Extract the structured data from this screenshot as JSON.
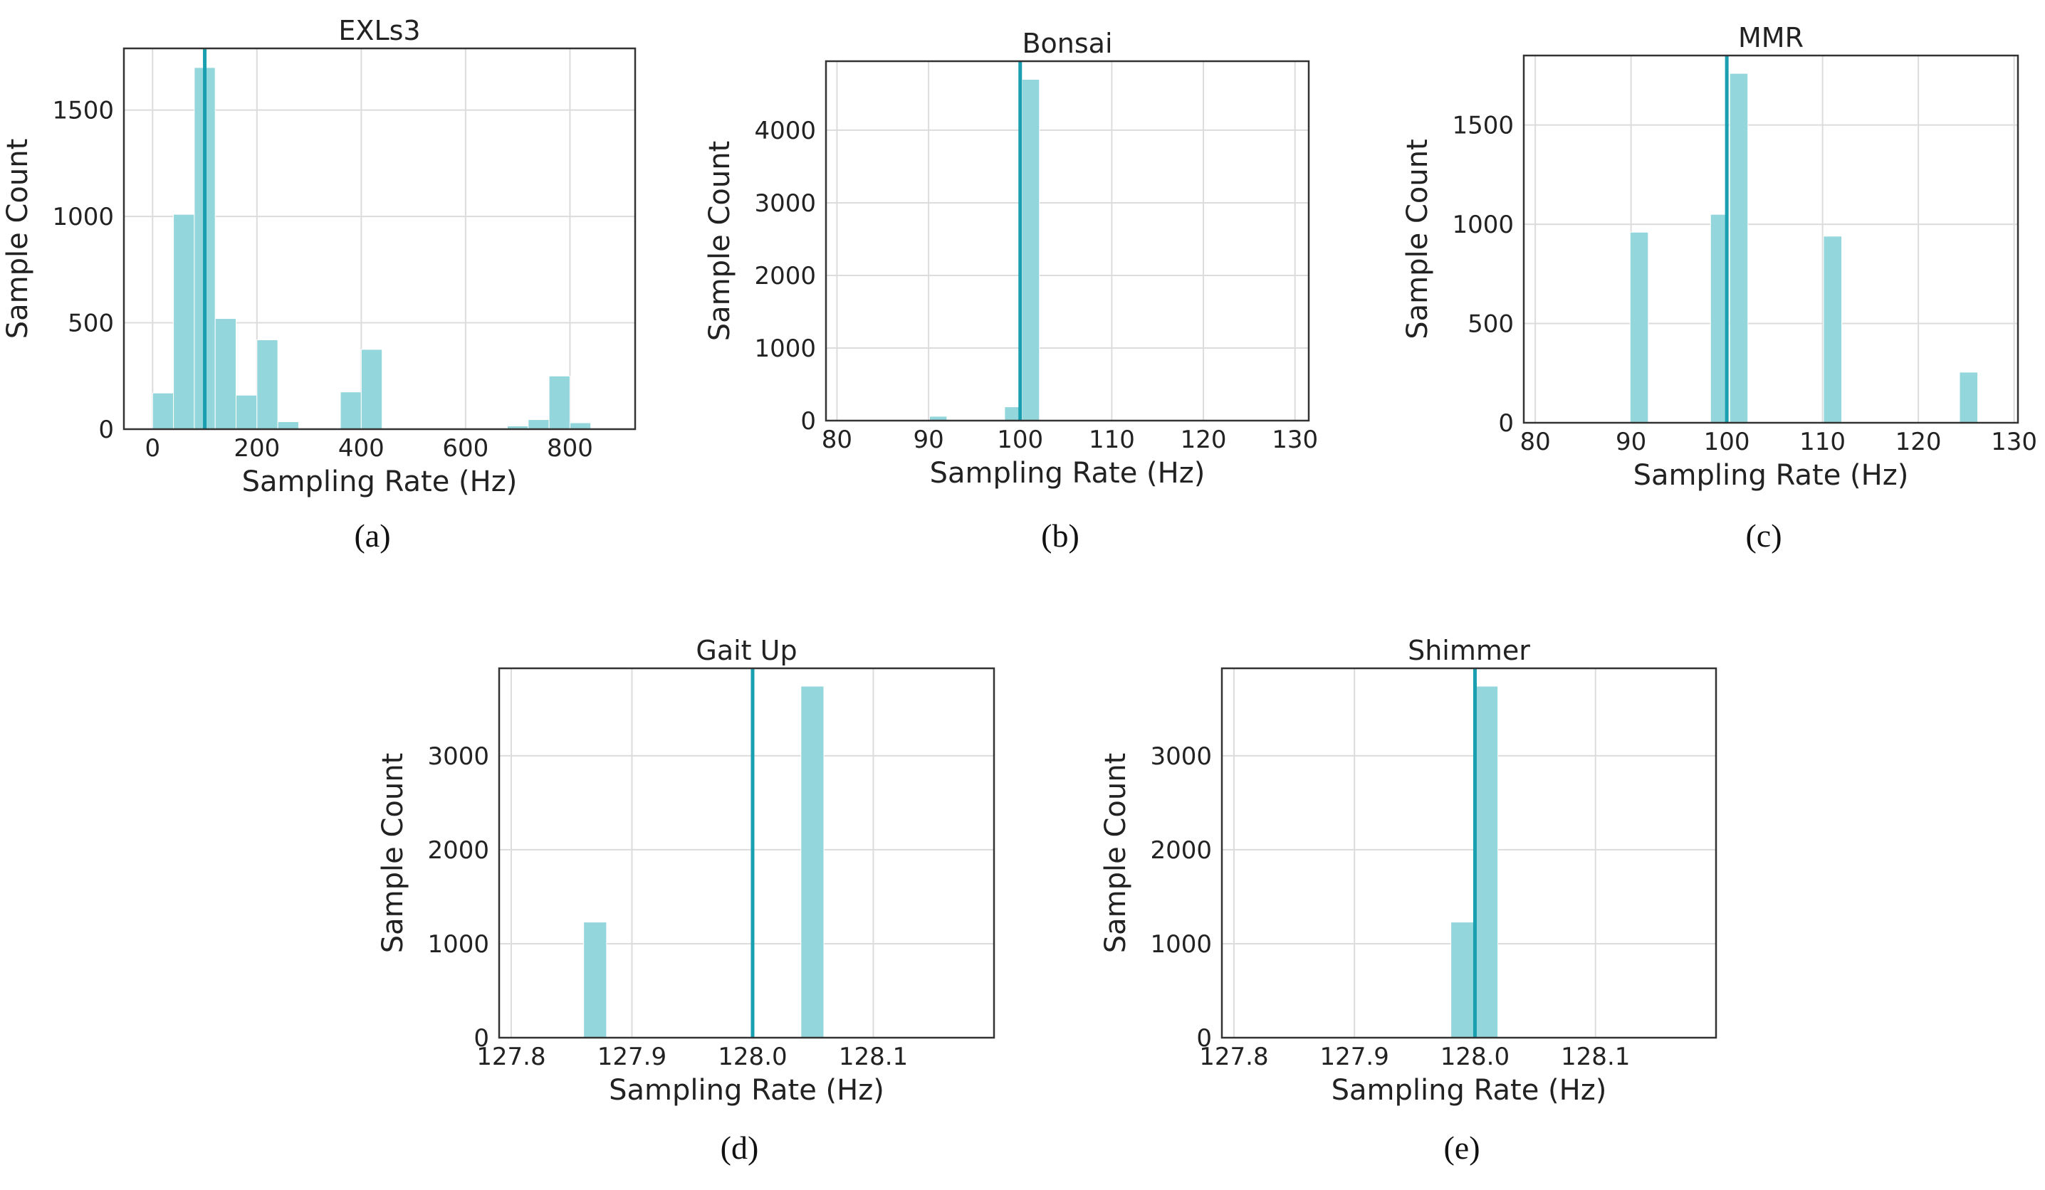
{
  "colors": {
    "bar": "#93d6db",
    "ref_line": "#1a9fb0"
  },
  "chart_data": [
    {
      "id": "a",
      "type": "bar",
      "title": "EXLs3",
      "xlabel": "Sampling Rate (Hz)",
      "ylabel": "Sample Count",
      "caption": "(a)",
      "xlim": [
        -55,
        925
      ],
      "ylim": [
        0,
        1790
      ],
      "xticks": [
        0,
        200,
        400,
        600,
        800
      ],
      "xtick_labels": [
        "0",
        "200",
        "400",
        "600",
        "800"
      ],
      "yticks": [
        0,
        500,
        1000,
        1500
      ],
      "ytick_labels": [
        "0",
        "500",
        "1000",
        "1500"
      ],
      "bin_width": 40,
      "bars": [
        {
          "x": 0,
          "value": 170
        },
        {
          "x": 40,
          "value": 1010
        },
        {
          "x": 80,
          "value": 1700
        },
        {
          "x": 120,
          "value": 520
        },
        {
          "x": 160,
          "value": 160
        },
        {
          "x": 200,
          "value": 420
        },
        {
          "x": 240,
          "value": 35
        },
        {
          "x": 360,
          "value": 175
        },
        {
          "x": 400,
          "value": 375
        },
        {
          "x": 640,
          "value": 5
        },
        {
          "x": 680,
          "value": 15
        },
        {
          "x": 720,
          "value": 45
        },
        {
          "x": 760,
          "value": 250
        },
        {
          "x": 800,
          "value": 30
        }
      ],
      "ref_line": 100
    },
    {
      "id": "b",
      "type": "bar",
      "title": "Bonsai",
      "xlabel": "Sampling Rate (Hz)",
      "ylabel": "Sample Count",
      "caption": "(b)",
      "xlim": [
        78.8,
        131.5
      ],
      "ylim": [
        0,
        4950
      ],
      "xticks": [
        80,
        90,
        100,
        110,
        120,
        130
      ],
      "xtick_labels": [
        "80",
        "90",
        "100",
        "110",
        "120",
        "130"
      ],
      "yticks": [
        0,
        1000,
        2000,
        3000,
        4000
      ],
      "ytick_labels": [
        "0",
        "1000",
        "2000",
        "3000",
        "4000"
      ],
      "bin_width": 1.9,
      "bars": [
        {
          "x": 90.1,
          "value": 60
        },
        {
          "x": 98.3,
          "value": 190
        },
        {
          "x": 100.2,
          "value": 4700
        }
      ],
      "ref_line": 100
    },
    {
      "id": "c",
      "type": "bar",
      "title": "MMR",
      "xlabel": "Sampling Rate (Hz)",
      "ylabel": "Sample Count",
      "caption": "(c)",
      "xlim": [
        78.8,
        130.4
      ],
      "ylim": [
        0,
        1850
      ],
      "xticks": [
        80,
        90,
        100,
        110,
        120,
        130
      ],
      "xtick_labels": [
        "80",
        "90",
        "100",
        "110",
        "120",
        "130"
      ],
      "yticks": [
        0,
        500,
        1000,
        1500
      ],
      "ytick_labels": [
        "0",
        "500",
        "1000",
        "1500"
      ],
      "bin_width": 1.9,
      "bars": [
        {
          "x": 89.9,
          "value": 960
        },
        {
          "x": 98.3,
          "value": 1050
        },
        {
          "x": 100.3,
          "value": 1760
        },
        {
          "x": 110.1,
          "value": 940
        },
        {
          "x": 124.3,
          "value": 255
        }
      ],
      "ref_line": 100
    },
    {
      "id": "d",
      "type": "bar",
      "title": "Gait Up",
      "xlabel": "Sampling Rate (Hz)",
      "ylabel": "Sample Count",
      "caption": "(d)",
      "xlim": [
        127.79,
        128.2
      ],
      "ylim": [
        0,
        3930
      ],
      "xticks": [
        127.8,
        127.9,
        128.0,
        128.1
      ],
      "xtick_labels": [
        "127.8",
        "127.9",
        "128.0",
        "128.1"
      ],
      "yticks": [
        0,
        1000,
        2000,
        3000
      ],
      "ytick_labels": [
        "0",
        "1000",
        "2000",
        "3000"
      ],
      "bin_width": 0.019,
      "bars": [
        {
          "x": 127.86,
          "value": 1230
        },
        {
          "x": 128.04,
          "value": 3740
        }
      ],
      "ref_line": 128.0
    },
    {
      "id": "e",
      "type": "bar",
      "title": "Shimmer",
      "xlabel": "Sampling Rate (Hz)",
      "ylabel": "Sample Count",
      "caption": "(e)",
      "xlim": [
        127.79,
        128.2
      ],
      "ylim": [
        0,
        3930
      ],
      "xticks": [
        127.8,
        127.9,
        128.0,
        128.1
      ],
      "xtick_labels": [
        "127.8",
        "127.9",
        "128.0",
        "128.1"
      ],
      "yticks": [
        0,
        1000,
        2000,
        3000
      ],
      "ytick_labels": [
        "0",
        "1000",
        "2000",
        "3000"
      ],
      "bin_width": 0.019,
      "bars": [
        {
          "x": 127.98,
          "value": 1230
        },
        {
          "x": 128.0,
          "value": 3740
        }
      ],
      "ref_line": 128.0
    }
  ]
}
